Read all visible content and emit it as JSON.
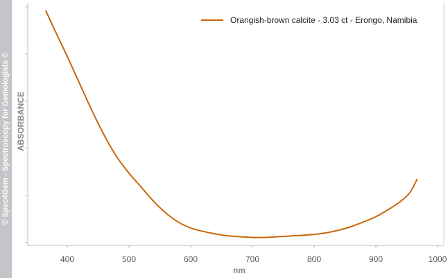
{
  "sidebar": {
    "watermark": "© Spec4Gem - Spectroscopy for Gemologists ©"
  },
  "chart_data": {
    "type": "line",
    "xlabel": "nm",
    "ylabel": "ABSORBANCE",
    "xlim": [
      350,
      1000
    ],
    "ylim": [
      0,
      1
    ],
    "x_ticks": [
      400,
      500,
      600,
      700,
      800,
      900,
      1000
    ],
    "y_ticks": [
      0,
      0.2,
      0.4,
      0.6,
      0.8,
      1.0
    ],
    "y_tick_labels_shown": false,
    "grid": false,
    "legend_position": "top-right",
    "line_color": "#c8660a",
    "series": [
      {
        "name": "Orangish-brown calcite - 3.03 ct - Erongo, Namibia",
        "x": [
          365,
          380,
          400,
          420,
          440,
          460,
          480,
          500,
          520,
          540,
          560,
          580,
          600,
          620,
          640,
          660,
          680,
          700,
          720,
          740,
          760,
          780,
          800,
          820,
          840,
          860,
          880,
          900,
          920,
          940,
          955,
          967
        ],
        "y": [
          0.985,
          0.9,
          0.79,
          0.675,
          0.56,
          0.455,
          0.365,
          0.295,
          0.235,
          0.175,
          0.125,
          0.087,
          0.062,
          0.048,
          0.037,
          0.029,
          0.025,
          0.022,
          0.022,
          0.025,
          0.028,
          0.031,
          0.035,
          0.042,
          0.053,
          0.068,
          0.088,
          0.11,
          0.14,
          0.175,
          0.212,
          0.27
        ]
      }
    ]
  }
}
